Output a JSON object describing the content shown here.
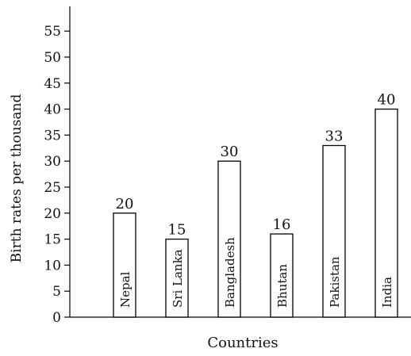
{
  "chart_data": {
    "type": "bar",
    "xlabel": "Countries",
    "ylabel": "Birth rates per thousand",
    "categories": [
      "Nepal",
      "Sri Lanka",
      "Bangladesh",
      "Bhutan",
      "Pakistan",
      "India"
    ],
    "values": [
      20,
      15,
      30,
      16,
      33,
      40
    ],
    "data_labels": [
      "20",
      "15",
      "30",
      "16",
      "33",
      "40"
    ],
    "yticks": [
      0,
      5,
      10,
      15,
      20,
      25,
      30,
      35,
      40,
      45,
      50,
      55
    ],
    "ylim": [
      0,
      60
    ],
    "grid": false,
    "legend": "none",
    "colors": {
      "bar_fill": "#ffffff",
      "bar_stroke": "#000000",
      "axis": "#000000"
    }
  }
}
